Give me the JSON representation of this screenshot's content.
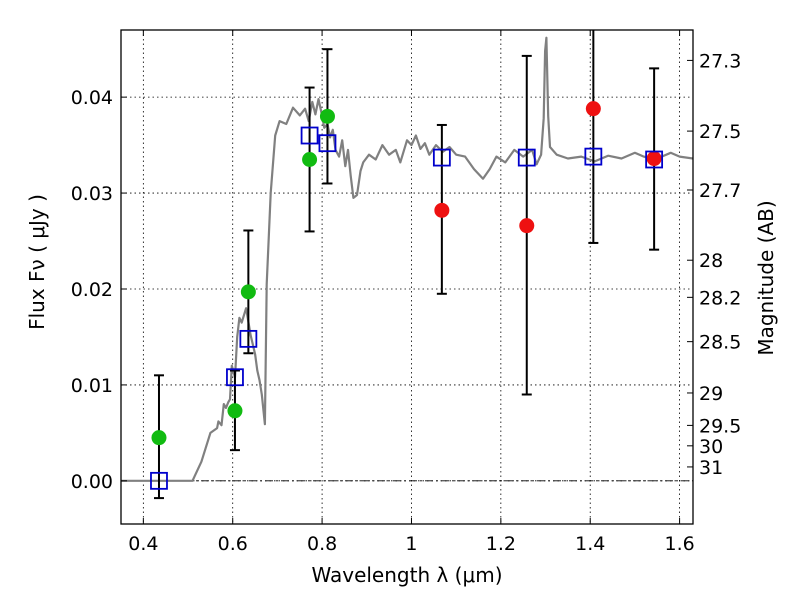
{
  "chart_data": {
    "type": "scatter",
    "xlabel": "Wavelength  λ (μm)",
    "ylabel": "Flux  Fν  ( μJy )",
    "ylabel_right": "Magnitude (AB)",
    "xlim": [
      0.35,
      1.63
    ],
    "ylim": [
      -0.0045,
      0.047
    ],
    "grid": true,
    "x_ticks": [
      {
        "value": 0.4,
        "label": "0.4"
      },
      {
        "value": 0.6,
        "label": "0.6"
      },
      {
        "value": 0.8,
        "label": "0.8"
      },
      {
        "value": 1.0,
        "label": "1"
      },
      {
        "value": 1.2,
        "label": "1.2"
      },
      {
        "value": 1.4,
        "label": "1.4"
      },
      {
        "value": 1.6,
        "label": "1.6"
      }
    ],
    "y_ticks": [
      {
        "value": 0.0,
        "label": "0.00"
      },
      {
        "value": 0.01,
        "label": "0.01"
      },
      {
        "value": 0.02,
        "label": "0.02"
      },
      {
        "value": 0.03,
        "label": "0.03"
      },
      {
        "value": 0.04,
        "label": "0.04"
      }
    ],
    "mag_ticks": [
      {
        "label": "27.3",
        "flux": 0.04383
      },
      {
        "label": "27.5",
        "flux": 0.03646
      },
      {
        "label": "27.7",
        "flux": 0.03032
      },
      {
        "label": "28",
        "flux": 0.023
      },
      {
        "label": "28.2",
        "flux": 0.01913
      },
      {
        "label": "28.5",
        "flux": 0.01451
      },
      {
        "label": "29",
        "flux": 0.00916
      },
      {
        "label": "29.5",
        "flux": 0.00578
      },
      {
        "label": "30",
        "flux": 0.00365
      },
      {
        "label": "31",
        "flux": 0.00145
      }
    ],
    "series": [
      {
        "kind": "line",
        "color": "#808080",
        "points": [
          [
            0.35,
            0.0
          ],
          [
            0.51,
            0.0
          ],
          [
            0.53,
            0.002
          ],
          [
            0.55,
            0.005
          ],
          [
            0.565,
            0.0055
          ],
          [
            0.568,
            0.0062
          ],
          [
            0.575,
            0.0058
          ],
          [
            0.58,
            0.008
          ],
          [
            0.585,
            0.0076
          ],
          [
            0.59,
            0.0082
          ],
          [
            0.594,
            0.0085
          ],
          [
            0.598,
            0.012
          ],
          [
            0.605,
            0.0108
          ],
          [
            0.61,
            0.015
          ],
          [
            0.615,
            0.017
          ],
          [
            0.62,
            0.0165
          ],
          [
            0.63,
            0.018
          ],
          [
            0.64,
            0.0152
          ],
          [
            0.65,
            0.0132
          ],
          [
            0.655,
            0.0115
          ],
          [
            0.66,
            0.0105
          ],
          [
            0.665,
            0.009
          ],
          [
            0.672,
            0.0059
          ],
          [
            0.676,
            0.0205
          ],
          [
            0.685,
            0.03
          ],
          [
            0.695,
            0.036
          ],
          [
            0.705,
            0.0375
          ],
          [
            0.72,
            0.0372
          ],
          [
            0.735,
            0.0389
          ],
          [
            0.75,
            0.0381
          ],
          [
            0.762,
            0.0388
          ],
          [
            0.77,
            0.0375
          ],
          [
            0.778,
            0.0395
          ],
          [
            0.785,
            0.0382
          ],
          [
            0.792,
            0.0398
          ],
          [
            0.798,
            0.0385
          ],
          [
            0.805,
            0.0368
          ],
          [
            0.812,
            0.0372
          ],
          [
            0.818,
            0.0358
          ],
          [
            0.824,
            0.0366
          ],
          [
            0.83,
            0.0345
          ],
          [
            0.838,
            0.0338
          ],
          [
            0.845,
            0.0355
          ],
          [
            0.852,
            0.0328
          ],
          [
            0.858,
            0.0345
          ],
          [
            0.864,
            0.0318
          ],
          [
            0.87,
            0.0295
          ],
          [
            0.878,
            0.0298
          ],
          [
            0.886,
            0.0323
          ],
          [
            0.892,
            0.0332
          ],
          [
            0.905,
            0.034
          ],
          [
            0.92,
            0.0335
          ],
          [
            0.935,
            0.035
          ],
          [
            0.95,
            0.034
          ],
          [
            0.965,
            0.0345
          ],
          [
            0.975,
            0.0332
          ],
          [
            0.99,
            0.0355
          ],
          [
            1.0,
            0.035
          ],
          [
            1.01,
            0.036
          ],
          [
            1.02,
            0.0346
          ],
          [
            1.03,
            0.0352
          ],
          [
            1.04,
            0.034
          ],
          [
            1.055,
            0.035
          ],
          [
            1.07,
            0.0343
          ],
          [
            1.085,
            0.0348
          ],
          [
            1.1,
            0.034
          ],
          [
            1.12,
            0.0338
          ],
          [
            1.14,
            0.0325
          ],
          [
            1.16,
            0.0315
          ],
          [
            1.175,
            0.0325
          ],
          [
            1.19,
            0.0338
          ],
          [
            1.21,
            0.0332
          ],
          [
            1.23,
            0.0345
          ],
          [
            1.25,
            0.0338
          ],
          [
            1.27,
            0.0345
          ],
          [
            1.28,
            0.033
          ],
          [
            1.29,
            0.034
          ],
          [
            1.296,
            0.0378
          ],
          [
            1.299,
            0.0448
          ],
          [
            1.302,
            0.0462
          ],
          [
            1.306,
            0.038
          ],
          [
            1.31,
            0.0348
          ],
          [
            1.325,
            0.034
          ],
          [
            1.35,
            0.0336
          ],
          [
            1.38,
            0.0338
          ],
          [
            1.41,
            0.0333
          ],
          [
            1.44,
            0.0339
          ],
          [
            1.47,
            0.0336
          ],
          [
            1.5,
            0.0342
          ],
          [
            1.52,
            0.0338
          ],
          [
            1.54,
            0.0335
          ],
          [
            1.56,
            0.0338
          ],
          [
            1.58,
            0.0342
          ],
          [
            1.6,
            0.0338
          ],
          [
            1.63,
            0.0336
          ]
        ]
      },
      {
        "kind": "errorbar",
        "color": "#000000",
        "bars": [
          [
            0.435,
            -0.0018,
            0.011
          ],
          [
            0.605,
            0.0032,
            0.0115
          ],
          [
            0.635,
            0.0133,
            0.0261
          ],
          [
            0.772,
            0.026,
            0.041
          ],
          [
            0.812,
            0.031,
            0.045
          ],
          [
            1.068,
            0.0195,
            0.0371
          ],
          [
            1.258,
            0.009,
            0.0443
          ],
          [
            1.407,
            0.0248,
            0.0472
          ],
          [
            1.543,
            0.0241,
            0.043
          ]
        ]
      },
      {
        "kind": "points",
        "marker": "circle",
        "color": "#11bb11",
        "points": [
          [
            0.435,
            0.0045
          ],
          [
            0.605,
            0.0073
          ],
          [
            0.635,
            0.0197
          ],
          [
            0.772,
            0.0335
          ],
          [
            0.812,
            0.038
          ]
        ]
      },
      {
        "kind": "points",
        "marker": "circle",
        "color": "#ee1111",
        "points": [
          [
            1.068,
            0.0282
          ],
          [
            1.258,
            0.0266
          ],
          [
            1.407,
            0.0388
          ],
          [
            1.543,
            0.0336
          ]
        ]
      },
      {
        "kind": "points",
        "marker": "square",
        "color": "#0000cc",
        "points": [
          [
            0.435,
            0.0
          ],
          [
            0.605,
            0.0108
          ],
          [
            0.635,
            0.0148
          ],
          [
            0.772,
            0.036
          ],
          [
            0.812,
            0.0352
          ],
          [
            1.068,
            0.0337
          ],
          [
            1.258,
            0.0337
          ],
          [
            1.407,
            0.0338
          ],
          [
            1.543,
            0.0335
          ]
        ]
      }
    ]
  }
}
